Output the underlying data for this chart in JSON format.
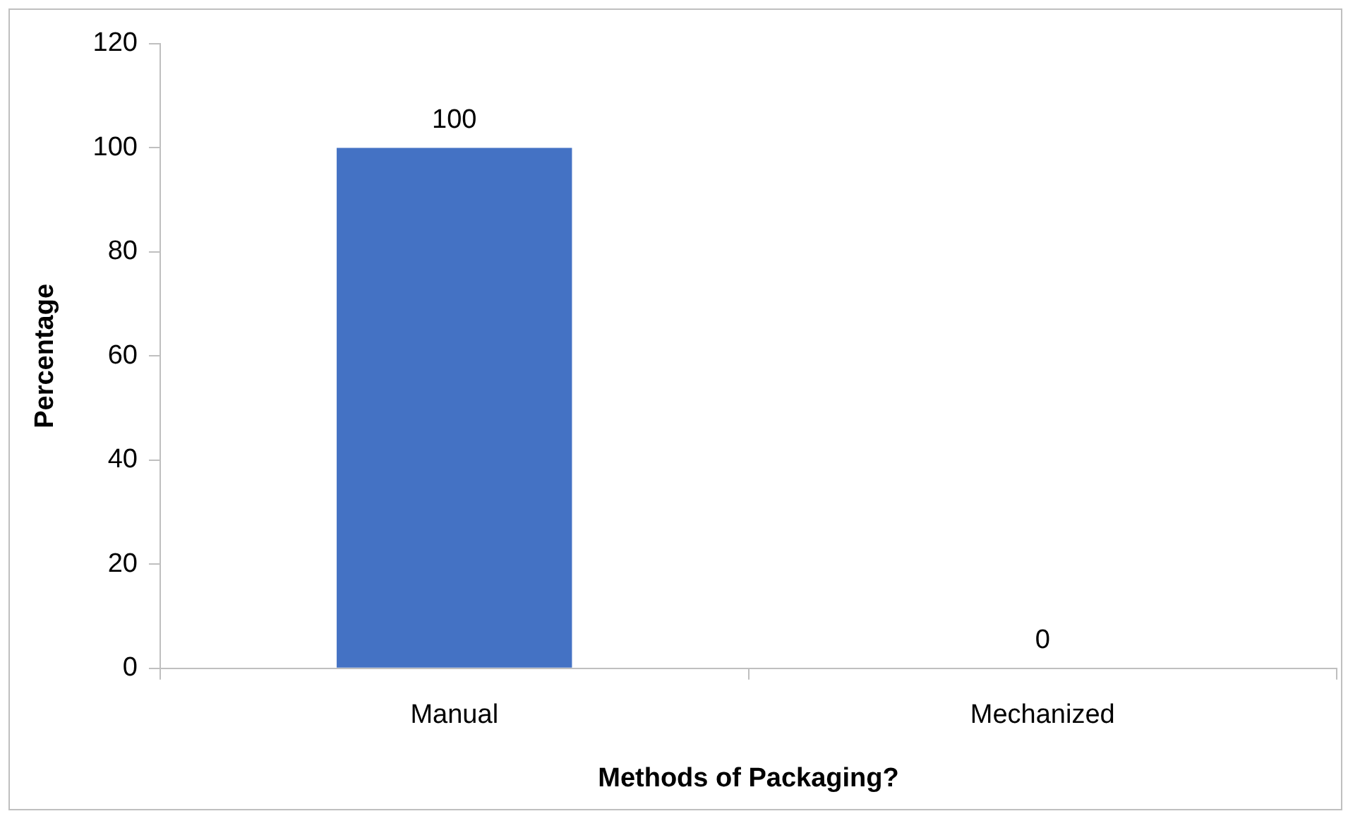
{
  "chart_data": {
    "type": "bar",
    "xlabel": "Methods of Packaging?",
    "ylabel": "Percentage",
    "categories": [
      "Manual",
      "Mechanized"
    ],
    "values": [
      100,
      0
    ],
    "color": "#4472c4",
    "ylim": [
      0,
      120
    ],
    "yticks": [
      0,
      20,
      40,
      60,
      80,
      100,
      120
    ],
    "grid": false,
    "legend": false,
    "data_labels": true
  }
}
